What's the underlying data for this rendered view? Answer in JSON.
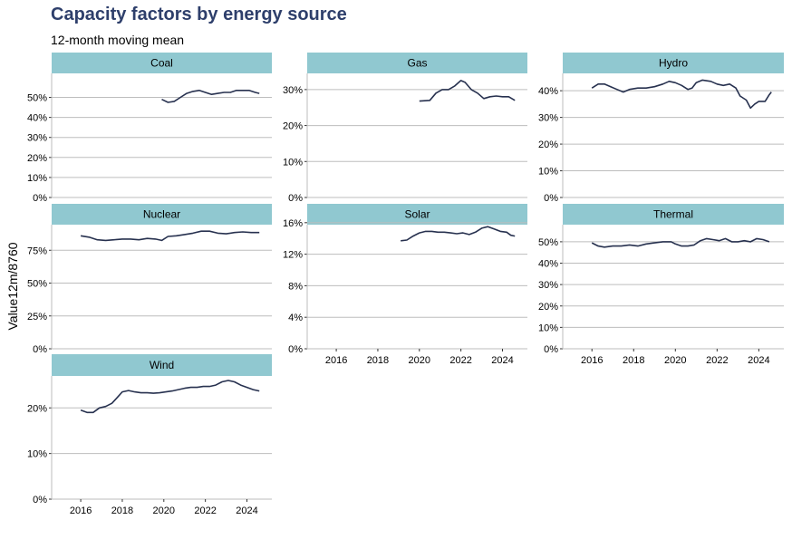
{
  "chart_data": {
    "type": "line",
    "title": "Capacity factors by energy source",
    "subtitle": "12-month moving mean",
    "ylabel": "Value12m/8760",
    "xlabel": "",
    "line_color": "#27314f",
    "strip_color": "#90c8d0",
    "grid_color": "#bdbdbd",
    "panels": [
      {
        "name": "Coal",
        "ylim": [
          0,
          0.62
        ],
        "yticks": [
          0,
          0.1,
          0.2,
          0.3,
          0.4,
          0.5
        ],
        "ytick_labels": [
          "0%",
          "10%",
          "20%",
          "30%",
          "40%",
          "50%"
        ],
        "series": [
          [
            2019.9,
            0.49
          ],
          [
            2020.2,
            0.475
          ],
          [
            2020.5,
            0.48
          ],
          [
            2020.8,
            0.5
          ],
          [
            2021.1,
            0.52
          ],
          [
            2021.4,
            0.53
          ],
          [
            2021.7,
            0.535
          ],
          [
            2022.0,
            0.525
          ],
          [
            2022.3,
            0.515
          ],
          [
            2022.6,
            0.52
          ],
          [
            2022.9,
            0.525
          ],
          [
            2023.2,
            0.525
          ],
          [
            2023.5,
            0.535
          ],
          [
            2023.8,
            0.535
          ],
          [
            2024.1,
            0.535
          ],
          [
            2024.4,
            0.525
          ],
          [
            2024.6,
            0.52
          ]
        ]
      },
      {
        "name": "Gas",
        "ylim": [
          0,
          0.345
        ],
        "yticks": [
          0,
          0.1,
          0.2,
          0.3
        ],
        "ytick_labels": [
          "0%",
          "10%",
          "20%",
          "30%"
        ],
        "series": [
          [
            2020.0,
            0.268
          ],
          [
            2020.5,
            0.27
          ],
          [
            2020.8,
            0.29
          ],
          [
            2021.1,
            0.3
          ],
          [
            2021.4,
            0.3
          ],
          [
            2021.7,
            0.31
          ],
          [
            2022.0,
            0.325
          ],
          [
            2022.2,
            0.32
          ],
          [
            2022.5,
            0.3
          ],
          [
            2022.8,
            0.29
          ],
          [
            2023.1,
            0.275
          ],
          [
            2023.4,
            0.28
          ],
          [
            2023.7,
            0.282
          ],
          [
            2024.0,
            0.28
          ],
          [
            2024.3,
            0.28
          ],
          [
            2024.6,
            0.27
          ]
        ]
      },
      {
        "name": "Hydro",
        "ylim": [
          0,
          0.465
        ],
        "yticks": [
          0,
          0.1,
          0.2,
          0.3,
          0.4
        ],
        "ytick_labels": [
          "0%",
          "10%",
          "20%",
          "30%",
          "40%"
        ],
        "series": [
          [
            2016.0,
            0.41
          ],
          [
            2016.3,
            0.425
          ],
          [
            2016.6,
            0.425
          ],
          [
            2016.9,
            0.415
          ],
          [
            2017.2,
            0.405
          ],
          [
            2017.5,
            0.395
          ],
          [
            2017.8,
            0.405
          ],
          [
            2018.2,
            0.41
          ],
          [
            2018.6,
            0.41
          ],
          [
            2019.0,
            0.415
          ],
          [
            2019.4,
            0.425
          ],
          [
            2019.7,
            0.435
          ],
          [
            2020.0,
            0.43
          ],
          [
            2020.3,
            0.42
          ],
          [
            2020.6,
            0.405
          ],
          [
            2020.8,
            0.41
          ],
          [
            2021.0,
            0.43
          ],
          [
            2021.3,
            0.44
          ],
          [
            2021.7,
            0.435
          ],
          [
            2022.0,
            0.425
          ],
          [
            2022.3,
            0.42
          ],
          [
            2022.6,
            0.425
          ],
          [
            2022.9,
            0.41
          ],
          [
            2023.1,
            0.38
          ],
          [
            2023.4,
            0.365
          ],
          [
            2023.6,
            0.335
          ],
          [
            2023.8,
            0.35
          ],
          [
            2024.0,
            0.36
          ],
          [
            2024.3,
            0.36
          ],
          [
            2024.5,
            0.385
          ],
          [
            2024.6,
            0.395
          ]
        ]
      },
      {
        "name": "Nuclear",
        "ylim": [
          0,
          0.945
        ],
        "yticks": [
          0,
          0.25,
          0.5,
          0.75
        ],
        "ytick_labels": [
          "0%",
          "25%",
          "50%",
          "75%"
        ],
        "series": [
          [
            2016.0,
            0.86
          ],
          [
            2016.4,
            0.85
          ],
          [
            2016.8,
            0.83
          ],
          [
            2017.2,
            0.825
          ],
          [
            2017.6,
            0.83
          ],
          [
            2018.0,
            0.835
          ],
          [
            2018.4,
            0.835
          ],
          [
            2018.8,
            0.83
          ],
          [
            2019.2,
            0.84
          ],
          [
            2019.6,
            0.835
          ],
          [
            2019.9,
            0.825
          ],
          [
            2020.2,
            0.855
          ],
          [
            2020.6,
            0.86
          ],
          [
            2021.0,
            0.87
          ],
          [
            2021.4,
            0.88
          ],
          [
            2021.8,
            0.895
          ],
          [
            2022.2,
            0.895
          ],
          [
            2022.6,
            0.88
          ],
          [
            2023.0,
            0.875
          ],
          [
            2023.4,
            0.885
          ],
          [
            2023.8,
            0.89
          ],
          [
            2024.2,
            0.885
          ],
          [
            2024.6,
            0.885
          ]
        ]
      },
      {
        "name": "Solar",
        "ylim": [
          0,
          0.1575
        ],
        "yticks": [
          0,
          0.04,
          0.08,
          0.12,
          0.16
        ],
        "ytick_labels": [
          "0%",
          "4%",
          "8%",
          "12%",
          "16%"
        ],
        "series": [
          [
            2019.1,
            0.137
          ],
          [
            2019.4,
            0.138
          ],
          [
            2019.7,
            0.143
          ],
          [
            2020.0,
            0.147
          ],
          [
            2020.3,
            0.149
          ],
          [
            2020.6,
            0.149
          ],
          [
            2020.9,
            0.148
          ],
          [
            2021.2,
            0.148
          ],
          [
            2021.5,
            0.147
          ],
          [
            2021.8,
            0.146
          ],
          [
            2022.1,
            0.147
          ],
          [
            2022.4,
            0.145
          ],
          [
            2022.7,
            0.148
          ],
          [
            2023.0,
            0.153
          ],
          [
            2023.3,
            0.155
          ],
          [
            2023.6,
            0.152
          ],
          [
            2023.9,
            0.149
          ],
          [
            2024.2,
            0.148
          ],
          [
            2024.4,
            0.144
          ],
          [
            2024.6,
            0.143
          ]
        ]
      },
      {
        "name": "Thermal",
        "ylim": [
          0,
          0.58
        ],
        "yticks": [
          0,
          0.1,
          0.2,
          0.3,
          0.4,
          0.5
        ],
        "ytick_labels": [
          "0%",
          "10%",
          "20%",
          "30%",
          "40%",
          "50%"
        ],
        "series": [
          [
            2016.0,
            0.495
          ],
          [
            2016.3,
            0.48
          ],
          [
            2016.6,
            0.475
          ],
          [
            2017.0,
            0.48
          ],
          [
            2017.4,
            0.48
          ],
          [
            2017.8,
            0.485
          ],
          [
            2018.2,
            0.48
          ],
          [
            2018.6,
            0.49
          ],
          [
            2019.0,
            0.495
          ],
          [
            2019.4,
            0.5
          ],
          [
            2019.8,
            0.5
          ],
          [
            2020.0,
            0.49
          ],
          [
            2020.3,
            0.48
          ],
          [
            2020.6,
            0.48
          ],
          [
            2020.9,
            0.485
          ],
          [
            2021.2,
            0.505
          ],
          [
            2021.5,
            0.515
          ],
          [
            2021.8,
            0.51
          ],
          [
            2022.1,
            0.505
          ],
          [
            2022.4,
            0.515
          ],
          [
            2022.7,
            0.5
          ],
          [
            2023.0,
            0.5
          ],
          [
            2023.3,
            0.505
          ],
          [
            2023.6,
            0.5
          ],
          [
            2023.9,
            0.515
          ],
          [
            2024.2,
            0.51
          ],
          [
            2024.5,
            0.5
          ]
        ]
      },
      {
        "name": "Wind",
        "ylim": [
          0,
          0.27
        ],
        "yticks": [
          0,
          0.1,
          0.2
        ],
        "ytick_labels": [
          "0%",
          "10%",
          "20%"
        ],
        "series": [
          [
            2016.0,
            0.195
          ],
          [
            2016.3,
            0.19
          ],
          [
            2016.6,
            0.19
          ],
          [
            2016.9,
            0.2
          ],
          [
            2017.2,
            0.203
          ],
          [
            2017.5,
            0.21
          ],
          [
            2017.8,
            0.225
          ],
          [
            2018.0,
            0.235
          ],
          [
            2018.3,
            0.238
          ],
          [
            2018.6,
            0.235
          ],
          [
            2018.9,
            0.233
          ],
          [
            2019.2,
            0.233
          ],
          [
            2019.5,
            0.232
          ],
          [
            2019.8,
            0.233
          ],
          [
            2020.1,
            0.235
          ],
          [
            2020.4,
            0.237
          ],
          [
            2020.7,
            0.24
          ],
          [
            2021.0,
            0.243
          ],
          [
            2021.3,
            0.245
          ],
          [
            2021.6,
            0.245
          ],
          [
            2021.9,
            0.247
          ],
          [
            2022.2,
            0.247
          ],
          [
            2022.5,
            0.25
          ],
          [
            2022.8,
            0.257
          ],
          [
            2023.1,
            0.26
          ],
          [
            2023.4,
            0.257
          ],
          [
            2023.7,
            0.25
          ],
          [
            2024.0,
            0.245
          ],
          [
            2024.3,
            0.24
          ],
          [
            2024.6,
            0.237
          ]
        ]
      }
    ],
    "xlim": [
      2014.6,
      2025.2
    ],
    "xticks": [
      2016,
      2018,
      2020,
      2022,
      2024
    ],
    "xtick_labels": [
      "2016",
      "2018",
      "2020",
      "2022",
      "2024"
    ]
  }
}
